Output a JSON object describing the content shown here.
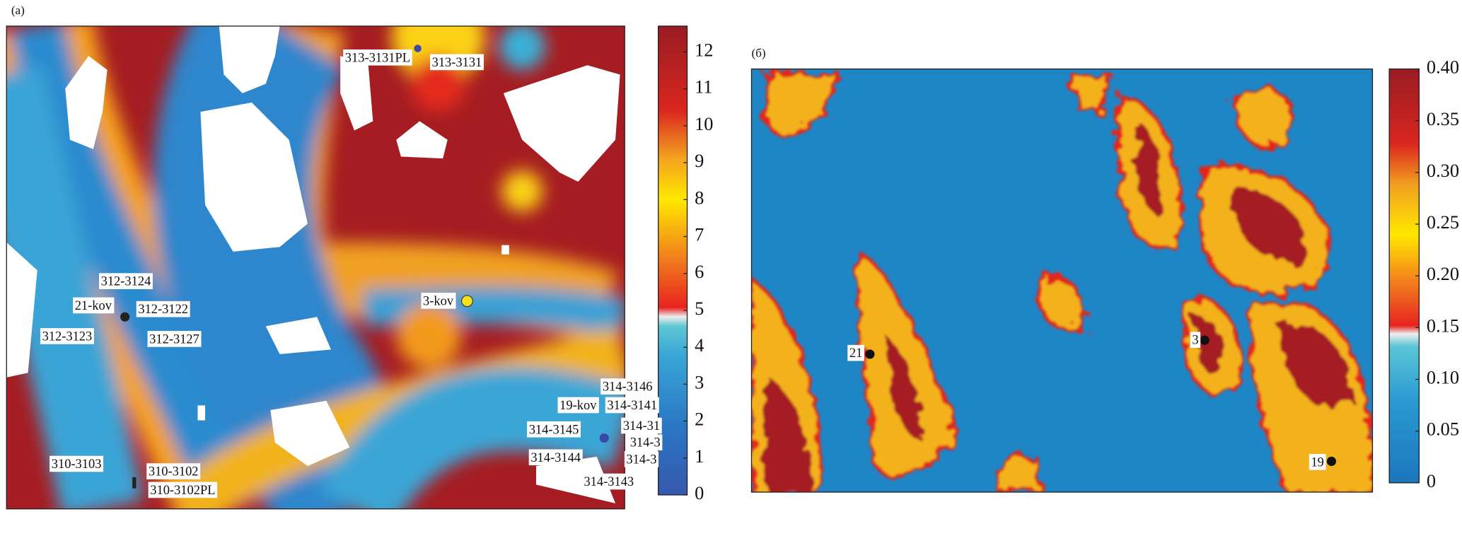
{
  "chart_data": [
    {
      "type": "heatmap",
      "panel_label": "(a)",
      "zlim": [
        0,
        12.7
      ],
      "zticks": [
        0,
        1,
        2,
        3,
        4,
        5,
        6,
        7,
        8,
        9,
        10,
        11,
        12
      ],
      "annotations": [
        "313-3131PL",
        "313-3131",
        "312-3124",
        "21-kov",
        "312-3122",
        "312-3123",
        "312-3127",
        "3-kov",
        "314-3146",
        "19-kov",
        "314-3141",
        "314-3145",
        "314-31",
        "314-3",
        "314-3144",
        "314-3",
        "314-3143",
        "310-3103",
        "310-3102",
        "310-3102PL"
      ]
    },
    {
      "type": "heatmap",
      "panel_label": "(б)",
      "zlim": [
        0,
        0.4
      ],
      "zticks": [
        0,
        0.05,
        {
          "value": 0.1,
          "label": "0.10"
        },
        0.15,
        {
          "value": 0.2,
          "label": "0.20"
        },
        0.25,
        {
          "value": 0.3,
          "label": "0.30"
        },
        0.35,
        {
          "value": 0.4,
          "label": "0.40"
        }
      ],
      "annotations": [
        "21",
        "3",
        "19"
      ]
    }
  ]
}
